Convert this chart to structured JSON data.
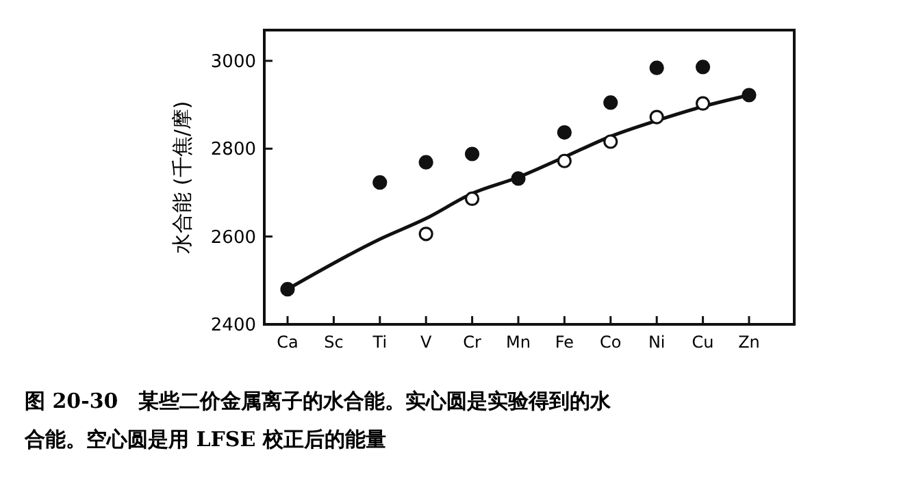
{
  "chart_data": {
    "type": "scatter",
    "ylabel": "水合能 (千焦/摩)",
    "categories": [
      "Ca",
      "Sc",
      "Ti",
      "V",
      "Cr",
      "Mn",
      "Fe",
      "Co",
      "Ni",
      "Cu",
      "Zn"
    ],
    "series": [
      {
        "type": "line",
        "color": "#111111",
        "marker": "none",
        "line_style": "solid",
        "values": [
          2480,
          null,
          2594,
          2641,
          2698,
          2735,
          2781,
          2828,
          2864,
          2896,
          2922
        ]
      },
      {
        "color": "#111111",
        "marker": "circle",
        "values": [
          2480,
          null,
          2723,
          2769,
          2788,
          2732,
          2837,
          2905,
          2984,
          2986,
          2922
        ]
      },
      {
        "color": "#ffffff",
        "marker": "circle",
        "values": [
          null,
          null,
          null,
          2606,
          2686,
          null,
          2772,
          2816,
          2872,
          2903,
          null
        ]
      }
    ],
    "ylim": [
      2400,
      3070
    ],
    "yticks": [
      2400,
      2600,
      2800,
      3000
    ],
    "grid": false,
    "annotations": [
      "图 20-30　某些二价金属离子的水合能。实心圆是实验得到的水合能。空心圆是用 LFSE 校正后的能量"
    ]
  }
}
